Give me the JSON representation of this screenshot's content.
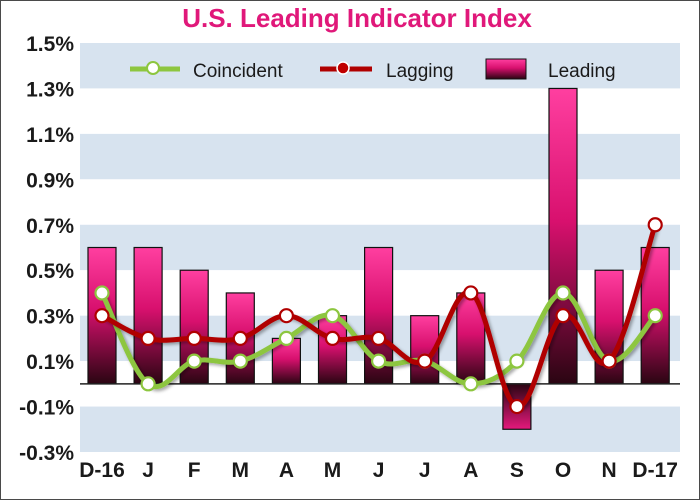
{
  "chart_data": {
    "type": "bar+line",
    "title": "U.S. Leading Indicator Index",
    "categories": [
      "D-16",
      "J",
      "F",
      "M",
      "A",
      "M",
      "J",
      "J",
      "A",
      "S",
      "O",
      "N",
      "D-17"
    ],
    "y_ticks": [
      "1.5%",
      "1.3%",
      "1.1%",
      "0.9%",
      "0.7%",
      "0.5%",
      "0.3%",
      "0.1%",
      "-0.1%",
      "-0.3%"
    ],
    "ylim": [
      -0.3,
      1.5
    ],
    "grid": "alternating horizontal bands",
    "legend_position": "top",
    "series": [
      {
        "name": "Coincident",
        "type": "line",
        "color": "#8dc63f",
        "values": [
          0.4,
          0.0,
          0.1,
          0.1,
          0.2,
          0.3,
          0.1,
          0.1,
          0.0,
          0.1,
          0.4,
          0.1,
          0.3
        ]
      },
      {
        "name": "Lagging",
        "type": "line",
        "color": "#b00000",
        "values": [
          0.3,
          0.2,
          0.2,
          0.2,
          0.3,
          0.2,
          0.2,
          0.1,
          0.4,
          -0.1,
          0.3,
          0.1,
          0.7
        ]
      },
      {
        "name": "Leading",
        "type": "bar",
        "color": "#e6197c",
        "values": [
          0.6,
          0.6,
          0.5,
          0.4,
          0.2,
          0.3,
          0.6,
          0.3,
          0.4,
          -0.2,
          1.3,
          0.5,
          0.6
        ]
      }
    ]
  }
}
